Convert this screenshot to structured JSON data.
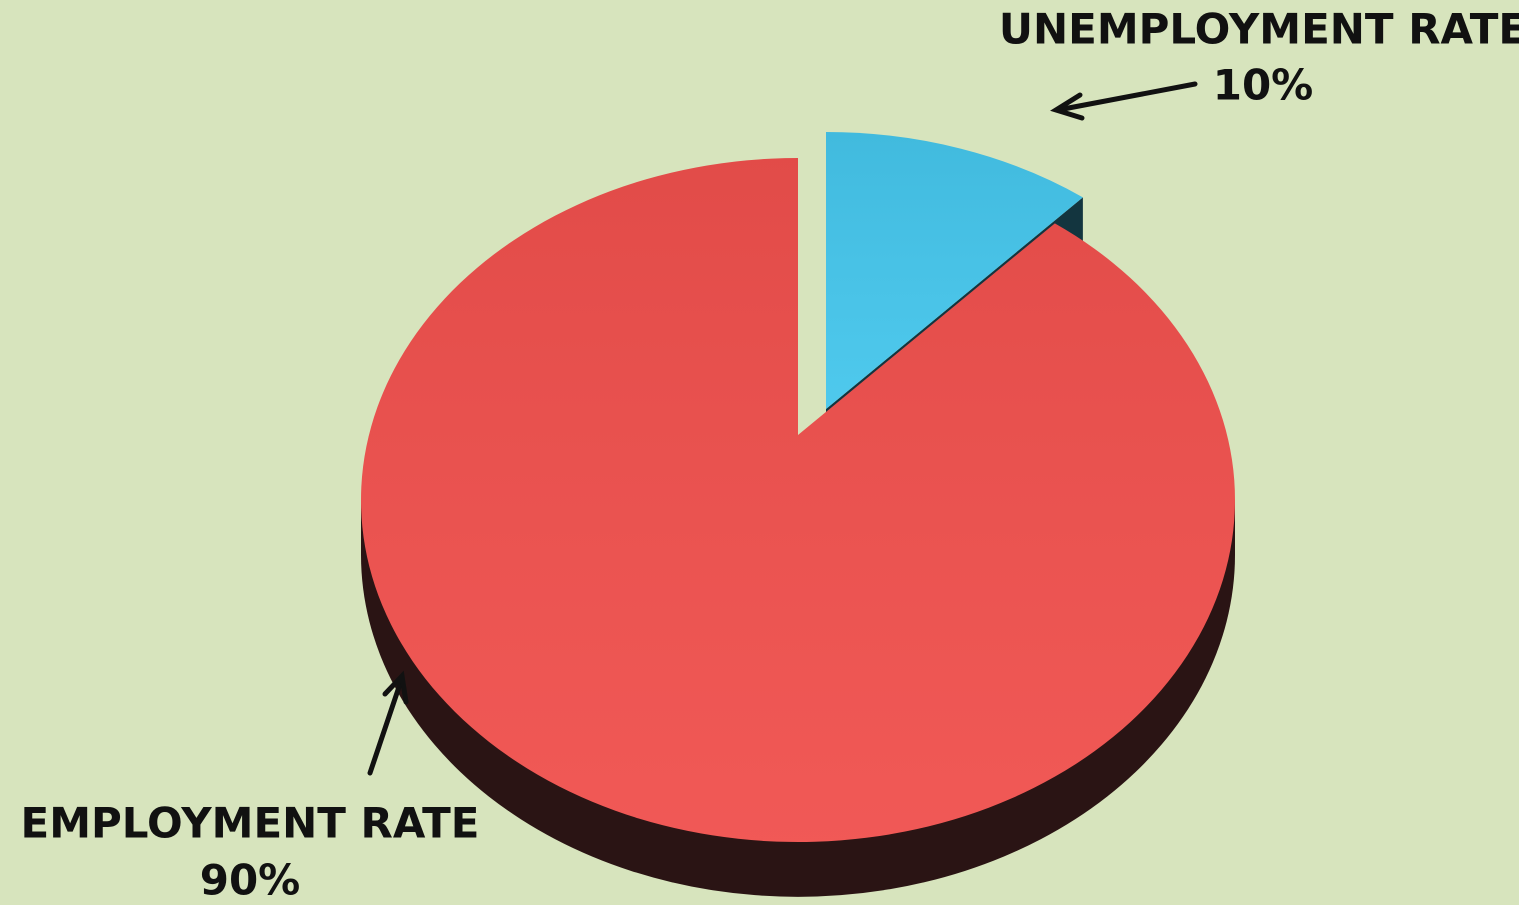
{
  "chart_data": {
    "type": "pie",
    "categories": [
      "UNEMPLOYMENT RATE",
      "EMPLOYMENT RATE"
    ],
    "values": [
      10,
      90
    ],
    "value_labels": [
      "10%",
      "90%"
    ],
    "colors": [
      "#45c6ec",
      "#f0504d"
    ],
    "explode": [
      1,
      0
    ]
  }
}
